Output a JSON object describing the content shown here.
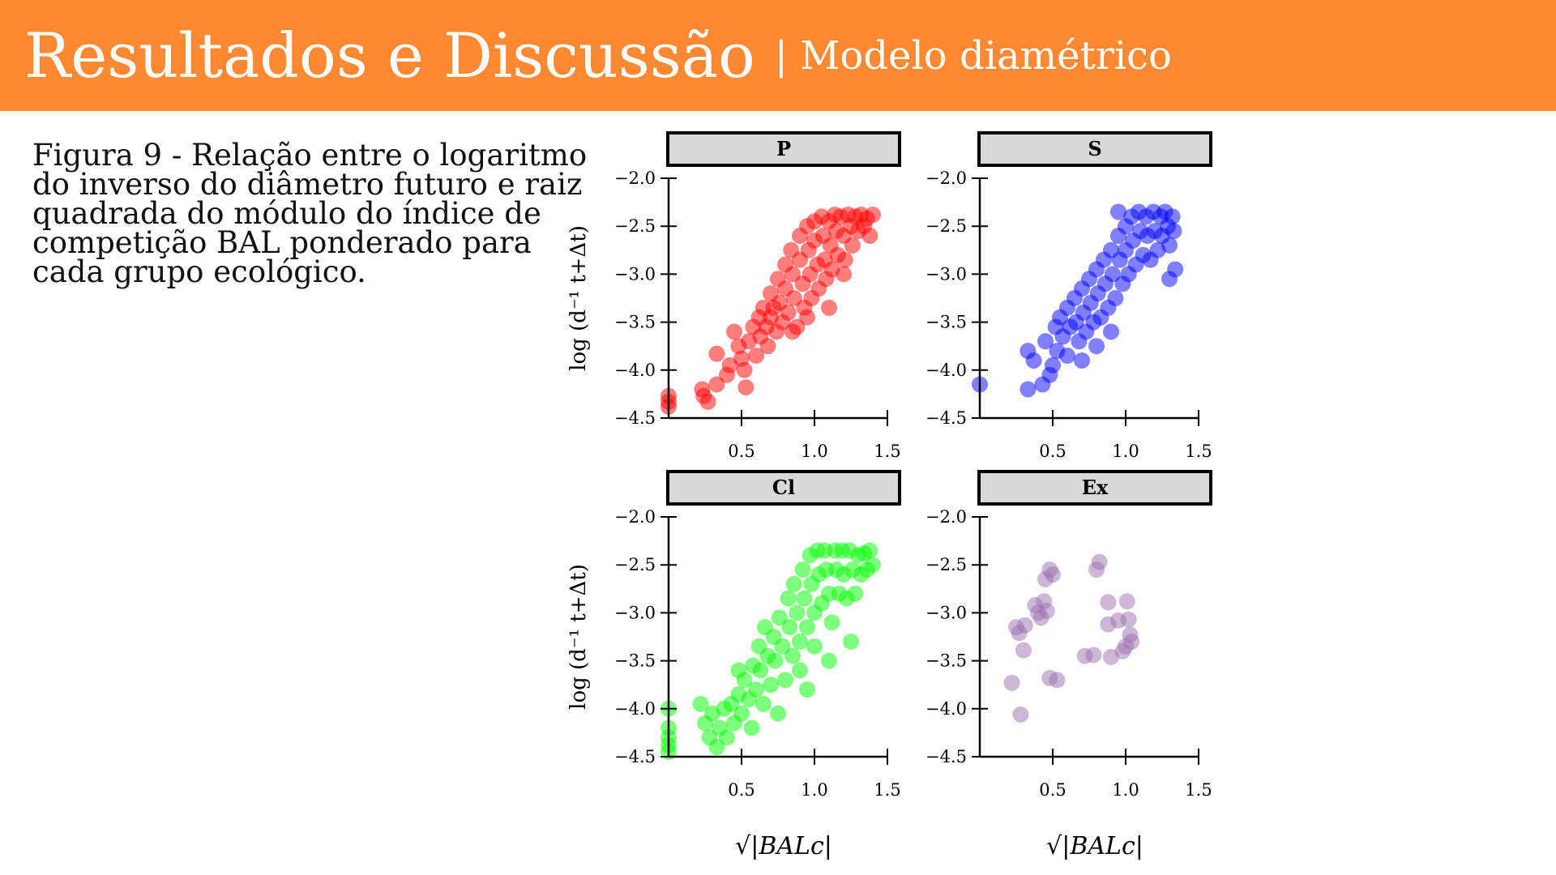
{
  "header": {
    "title": "Resultados e Discussão",
    "subtitle": "| Modelo diamétrico"
  },
  "caption": "Figura 9 - Relação entre o logaritmo do inverso do diâmetro futuro e raiz quadrada do módulo do índice de competição BAL ponderado para cada grupo ecológico.",
  "colors": {
    "header_bg": "#ff8833",
    "P": "#ff0000",
    "S": "#0000ff",
    "Cl": "#00ff00",
    "Ex": "#9b6fb0",
    "panel_strip": "#d9d9d9"
  },
  "chart_data": {
    "type": "scatter",
    "layout": "facet-2x2",
    "xlabel": "√|BALc|",
    "ylabel": "log (d⁻¹ t+Δt)",
    "xlim": [
      0,
      1.5
    ],
    "ylim": [
      -4.5,
      -2.0
    ],
    "xticks": [
      0.5,
      1.0,
      1.5
    ],
    "yticks": [
      -2.0,
      -2.5,
      -3.0,
      -3.5,
      -4.0,
      -4.5
    ],
    "xtick_labels": [
      "0.5",
      "1.0",
      "1.5"
    ],
    "ytick_labels": [
      "−2.0",
      "−2.5",
      "−3.0",
      "−3.5",
      "−4.0",
      "−4.5"
    ],
    "grid": false,
    "panels": [
      {
        "name": "P",
        "color": "#ff0000",
        "points": [
          [
            0.0,
            -4.27
          ],
          [
            0.0,
            -4.33
          ],
          [
            0.0,
            -4.38
          ],
          [
            0.23,
            -4.2
          ],
          [
            0.24,
            -4.27
          ],
          [
            0.27,
            -4.33
          ],
          [
            0.33,
            -4.15
          ],
          [
            0.33,
            -3.83
          ],
          [
            0.4,
            -4.05
          ],
          [
            0.42,
            -3.95
          ],
          [
            0.45,
            -3.6
          ],
          [
            0.48,
            -3.75
          ],
          [
            0.5,
            -3.88
          ],
          [
            0.52,
            -4.0
          ],
          [
            0.53,
            -4.18
          ],
          [
            0.55,
            -3.7
          ],
          [
            0.58,
            -3.55
          ],
          [
            0.6,
            -3.85
          ],
          [
            0.62,
            -3.45
          ],
          [
            0.63,
            -3.65
          ],
          [
            0.65,
            -3.35
          ],
          [
            0.67,
            -3.55
          ],
          [
            0.68,
            -3.75
          ],
          [
            0.7,
            -3.2
          ],
          [
            0.7,
            -3.45
          ],
          [
            0.72,
            -3.35
          ],
          [
            0.74,
            -3.6
          ],
          [
            0.75,
            -3.05
          ],
          [
            0.76,
            -3.3
          ],
          [
            0.78,
            -3.5
          ],
          [
            0.8,
            -2.9
          ],
          [
            0.8,
            -3.15
          ],
          [
            0.82,
            -3.4
          ],
          [
            0.84,
            -2.75
          ],
          [
            0.85,
            -3.0
          ],
          [
            0.86,
            -3.25
          ],
          [
            0.88,
            -3.55
          ],
          [
            0.9,
            -2.6
          ],
          [
            0.9,
            -2.85
          ],
          [
            0.92,
            -3.1
          ],
          [
            0.93,
            -3.35
          ],
          [
            0.95,
            -2.5
          ],
          [
            0.96,
            -2.75
          ],
          [
            0.97,
            -3.0
          ],
          [
            0.98,
            -3.25
          ],
          [
            1.0,
            -2.45
          ],
          [
            1.0,
            -2.65
          ],
          [
            1.02,
            -2.9
          ],
          [
            1.03,
            -3.15
          ],
          [
            1.05,
            -2.4
          ],
          [
            1.06,
            -2.6
          ],
          [
            1.07,
            -2.85
          ],
          [
            1.08,
            -3.05
          ],
          [
            1.1,
            -2.45
          ],
          [
            1.11,
            -2.7
          ],
          [
            1.12,
            -2.95
          ],
          [
            1.14,
            -2.38
          ],
          [
            1.15,
            -2.55
          ],
          [
            1.16,
            -2.8
          ],
          [
            1.18,
            -2.4
          ],
          [
            1.2,
            -2.6
          ],
          [
            1.21,
            -2.85
          ],
          [
            1.23,
            -2.38
          ],
          [
            1.25,
            -2.5
          ],
          [
            1.26,
            -2.7
          ],
          [
            1.28,
            -2.4
          ],
          [
            1.3,
            -2.55
          ],
          [
            1.32,
            -2.38
          ],
          [
            1.34,
            -2.5
          ],
          [
            1.36,
            -2.42
          ],
          [
            1.38,
            -2.6
          ],
          [
            1.4,
            -2.38
          ],
          [
            0.95,
            -3.45
          ],
          [
            1.1,
            -3.35
          ],
          [
            0.85,
            -3.6
          ],
          [
            1.2,
            -3.0
          ]
        ]
      },
      {
        "name": "S",
        "color": "#0000ff",
        "points": [
          [
            0.0,
            -4.15
          ],
          [
            0.33,
            -4.2
          ],
          [
            0.33,
            -3.8
          ],
          [
            0.37,
            -3.9
          ],
          [
            0.43,
            -4.15
          ],
          [
            0.45,
            -3.7
          ],
          [
            0.48,
            -4.05
          ],
          [
            0.5,
            -3.95
          ],
          [
            0.52,
            -3.55
          ],
          [
            0.53,
            -3.8
          ],
          [
            0.55,
            -3.45
          ],
          [
            0.57,
            -3.65
          ],
          [
            0.6,
            -3.35
          ],
          [
            0.6,
            -3.85
          ],
          [
            0.62,
            -3.55
          ],
          [
            0.65,
            -3.25
          ],
          [
            0.66,
            -3.5
          ],
          [
            0.68,
            -3.7
          ],
          [
            0.7,
            -3.15
          ],
          [
            0.71,
            -3.4
          ],
          [
            0.73,
            -3.6
          ],
          [
            0.75,
            -3.05
          ],
          [
            0.76,
            -3.3
          ],
          [
            0.78,
            -3.5
          ],
          [
            0.8,
            -2.95
          ],
          [
            0.81,
            -3.2
          ],
          [
            0.83,
            -3.45
          ],
          [
            0.85,
            -2.85
          ],
          [
            0.86,
            -3.1
          ],
          [
            0.88,
            -3.35
          ],
          [
            0.9,
            -2.75
          ],
          [
            0.91,
            -3.0
          ],
          [
            0.93,
            -3.25
          ],
          [
            0.95,
            -2.6
          ],
          [
            0.96,
            -2.85
          ],
          [
            0.98,
            -3.1
          ],
          [
            1.0,
            -2.5
          ],
          [
            1.0,
            -2.75
          ],
          [
            1.02,
            -3.0
          ],
          [
            1.04,
            -2.4
          ],
          [
            1.05,
            -2.65
          ],
          [
            1.07,
            -2.9
          ],
          [
            1.09,
            -2.35
          ],
          [
            1.1,
            -2.55
          ],
          [
            1.12,
            -2.8
          ],
          [
            1.14,
            -2.4
          ],
          [
            1.15,
            -2.6
          ],
          [
            1.17,
            -2.85
          ],
          [
            1.19,
            -2.35
          ],
          [
            1.2,
            -2.55
          ],
          [
            1.22,
            -2.75
          ],
          [
            1.24,
            -2.4
          ],
          [
            1.25,
            -2.6
          ],
          [
            1.27,
            -2.35
          ],
          [
            1.29,
            -2.5
          ],
          [
            1.3,
            -2.7
          ],
          [
            1.32,
            -2.4
          ],
          [
            1.33,
            -2.55
          ],
          [
            1.34,
            -2.95
          ],
          [
            1.3,
            -3.05
          ],
          [
            0.95,
            -2.35
          ],
          [
            0.7,
            -3.9
          ],
          [
            0.8,
            -3.75
          ],
          [
            0.9,
            -3.6
          ]
        ]
      },
      {
        "name": "Cl",
        "color": "#00ff00",
        "points": [
          [
            0.0,
            -4.0
          ],
          [
            0.0,
            -4.2
          ],
          [
            0.0,
            -4.3
          ],
          [
            0.0,
            -4.38
          ],
          [
            0.0,
            -4.45
          ],
          [
            0.22,
            -3.95
          ],
          [
            0.25,
            -4.15
          ],
          [
            0.28,
            -4.3
          ],
          [
            0.3,
            -4.05
          ],
          [
            0.33,
            -4.4
          ],
          [
            0.35,
            -4.2
          ],
          [
            0.38,
            -4.0
          ],
          [
            0.4,
            -4.3
          ],
          [
            0.43,
            -3.95
          ],
          [
            0.45,
            -4.15
          ],
          [
            0.48,
            -3.85
          ],
          [
            0.48,
            -3.6
          ],
          [
            0.5,
            -4.05
          ],
          [
            0.52,
            -3.7
          ],
          [
            0.55,
            -3.9
          ],
          [
            0.57,
            -4.2
          ],
          [
            0.58,
            -3.55
          ],
          [
            0.6,
            -3.8
          ],
          [
            0.62,
            -3.35
          ],
          [
            0.63,
            -3.6
          ],
          [
            0.65,
            -3.95
          ],
          [
            0.66,
            -3.15
          ],
          [
            0.68,
            -3.45
          ],
          [
            0.7,
            -3.75
          ],
          [
            0.72,
            -3.25
          ],
          [
            0.73,
            -3.5
          ],
          [
            0.75,
            -4.05
          ],
          [
            0.76,
            -3.05
          ],
          [
            0.78,
            -3.35
          ],
          [
            0.8,
            -3.7
          ],
          [
            0.82,
            -2.85
          ],
          [
            0.83,
            -3.15
          ],
          [
            0.85,
            -3.45
          ],
          [
            0.86,
            -2.7
          ],
          [
            0.88,
            -3.0
          ],
          [
            0.9,
            -3.3
          ],
          [
            0.9,
            -3.6
          ],
          [
            0.92,
            -2.55
          ],
          [
            0.93,
            -2.85
          ],
          [
            0.95,
            -3.15
          ],
          [
            0.97,
            -2.4
          ],
          [
            0.98,
            -2.7
          ],
          [
            1.0,
            -3.0
          ],
          [
            1.0,
            -3.35
          ],
          [
            1.02,
            -2.35
          ],
          [
            1.03,
            -2.6
          ],
          [
            1.05,
            -2.9
          ],
          [
            1.07,
            -2.35
          ],
          [
            1.08,
            -2.55
          ],
          [
            1.1,
            -2.8
          ],
          [
            1.12,
            -3.1
          ],
          [
            1.14,
            -2.35
          ],
          [
            1.15,
            -2.55
          ],
          [
            1.17,
            -2.8
          ],
          [
            1.19,
            -2.35
          ],
          [
            1.2,
            -2.6
          ],
          [
            1.22,
            -2.85
          ],
          [
            1.24,
            -2.35
          ],
          [
            1.26,
            -2.55
          ],
          [
            1.28,
            -2.8
          ],
          [
            1.3,
            -2.4
          ],
          [
            1.32,
            -2.6
          ],
          [
            1.34,
            -2.38
          ],
          [
            1.36,
            -2.55
          ],
          [
            1.38,
            -2.35
          ],
          [
            1.4,
            -2.5
          ],
          [
            1.25,
            -3.3
          ],
          [
            1.1,
            -3.5
          ],
          [
            0.95,
            -3.8
          ]
        ]
      },
      {
        "name": "Ex",
        "color": "#9b6fb0",
        "points": [
          [
            0.22,
            -3.73
          ],
          [
            0.25,
            -3.15
          ],
          [
            0.27,
            -3.21
          ],
          [
            0.28,
            -4.06
          ],
          [
            0.3,
            -3.39
          ],
          [
            0.31,
            -3.13
          ],
          [
            0.38,
            -2.92
          ],
          [
            0.4,
            -3.0
          ],
          [
            0.42,
            -3.05
          ],
          [
            0.44,
            -2.88
          ],
          [
            0.45,
            -2.65
          ],
          [
            0.46,
            -2.98
          ],
          [
            0.48,
            -2.55
          ],
          [
            0.5,
            -2.6
          ],
          [
            0.48,
            -3.68
          ],
          [
            0.53,
            -3.7
          ],
          [
            0.72,
            -3.45
          ],
          [
            0.78,
            -3.44
          ],
          [
            0.8,
            -2.55
          ],
          [
            0.82,
            -2.47
          ],
          [
            0.88,
            -3.12
          ],
          [
            0.88,
            -2.89
          ],
          [
            0.9,
            -3.46
          ],
          [
            0.95,
            -3.08
          ],
          [
            0.98,
            -3.4
          ],
          [
            1.0,
            -3.35
          ],
          [
            1.01,
            -2.88
          ],
          [
            1.02,
            -3.07
          ],
          [
            1.03,
            -3.23
          ],
          [
            1.04,
            -3.3
          ]
        ]
      }
    ]
  }
}
